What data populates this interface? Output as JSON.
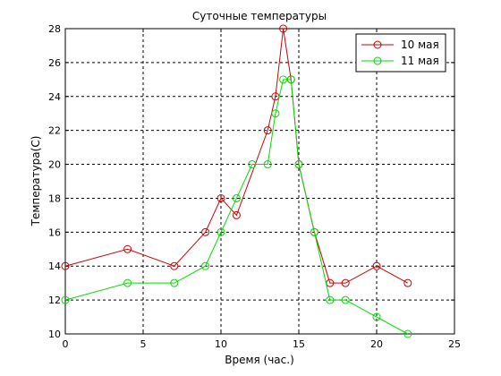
{
  "chart_data": {
    "type": "line",
    "title": "Суточные температуры",
    "xlabel": "Время (час.)",
    "ylabel": "Температура(С)",
    "xlim": [
      0,
      25
    ],
    "ylim": [
      10,
      28
    ],
    "xticks": [
      0,
      5,
      10,
      15,
      20,
      25
    ],
    "yticks": [
      10,
      12,
      14,
      16,
      18,
      20,
      22,
      24,
      26,
      28
    ],
    "xtick_labels": [
      "0",
      "5",
      "10",
      "15",
      "20",
      "25"
    ],
    "ytick_labels": [
      "10",
      "12",
      "14",
      "16",
      "18",
      "20",
      "22",
      "24",
      "26",
      "28"
    ],
    "grid": true,
    "legend_position": "top-right",
    "marker": "circle",
    "series": [
      {
        "name": "10 мая",
        "color": "#cc0000",
        "x": [
          0,
          4,
          7,
          9,
          10,
          11,
          13,
          13.5,
          14,
          14.5,
          15,
          16,
          17,
          18,
          20,
          22
        ],
        "y": [
          14,
          15,
          14,
          16,
          18,
          17,
          22,
          24,
          28,
          25,
          20,
          16,
          13,
          13,
          14,
          13
        ]
      },
      {
        "name": "11 мая",
        "color": "#00dd00",
        "x": [
          0,
          4,
          7,
          9,
          10,
          11,
          12,
          13,
          13.5,
          14,
          14.5,
          15,
          16,
          17,
          18,
          20,
          22
        ],
        "y": [
          12,
          13,
          13,
          14,
          16,
          18,
          20,
          20,
          23,
          25,
          25,
          20,
          16,
          12,
          12,
          11,
          10
        ]
      }
    ]
  }
}
